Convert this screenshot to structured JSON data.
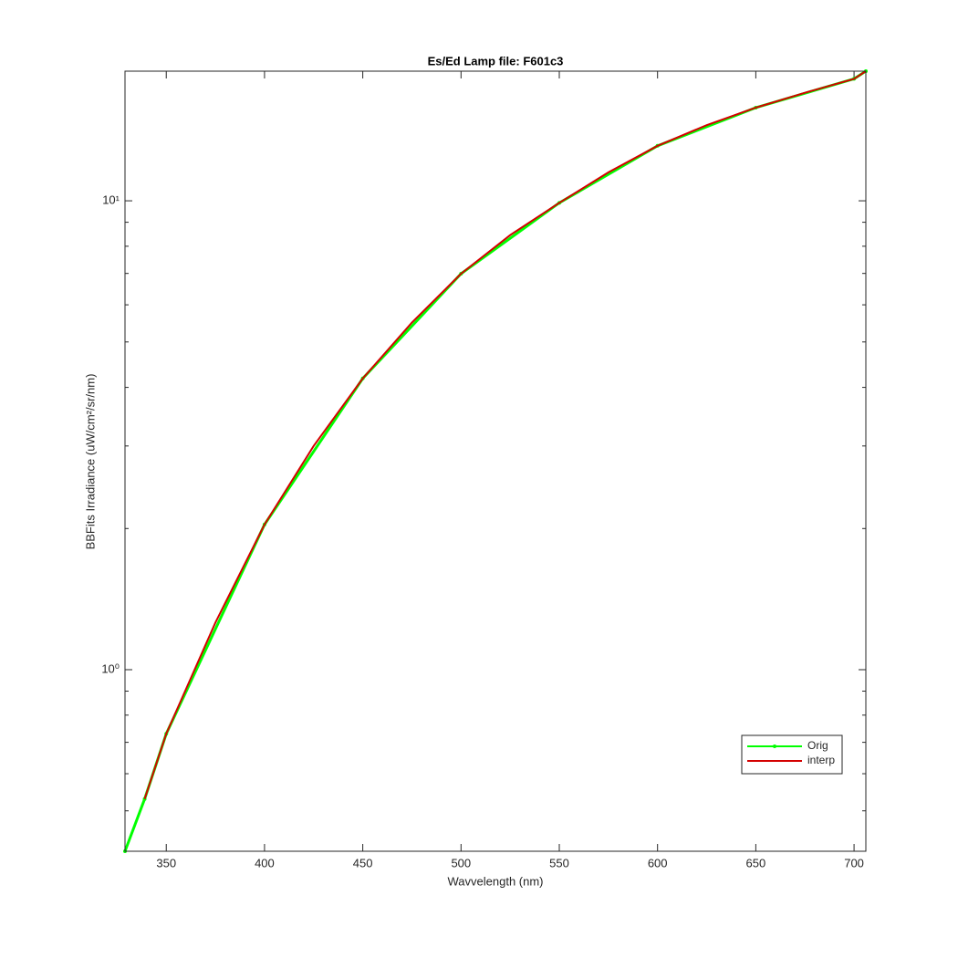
{
  "chart_data": {
    "type": "line",
    "title": "Es/Ed Lamp file: F601c3",
    "x_label": "Wavvelength (nm)",
    "y_label": "BBFits Irradiance (uW/cm²/sr/nm)",
    "log_y": true,
    "xlim": [
      329,
      706
    ],
    "ylim": [
      0.41,
      18.9
    ],
    "xticks": [
      350,
      400,
      450,
      500,
      550,
      600,
      650,
      700
    ],
    "yticks": [
      {
        "value": 1,
        "label": "10⁰"
      },
      {
        "value": 10,
        "label": "10¹"
      }
    ],
    "yminor_ticks": [
      0.5,
      0.6,
      0.7,
      0.8,
      0.9,
      2,
      3,
      4,
      5,
      6,
      7,
      8,
      9
    ],
    "legend": "lower right",
    "series": [
      {
        "name": "Orig",
        "color": "#00ff00",
        "x": [
          329,
          339,
          350,
          400,
          450,
          500,
          550,
          600,
          650,
          700,
          706
        ],
        "values": [
          0.41,
          0.53,
          0.73,
          2.04,
          4.18,
          6.99,
          9.9,
          13.1,
          15.8,
          18.2,
          18.9
        ]
      },
      {
        "name": "interp",
        "color": "#d40000",
        "x": [
          339,
          350,
          375,
          400,
          425,
          450,
          475,
          500,
          525,
          550,
          575,
          600,
          625,
          650,
          675,
          700,
          706
        ],
        "values": [
          0.53,
          0.73,
          1.26,
          2.04,
          3.0,
          4.18,
          5.5,
          6.99,
          8.45,
          9.9,
          11.5,
          13.1,
          14.5,
          15.8,
          17.0,
          18.2,
          18.9
        ]
      }
    ]
  }
}
